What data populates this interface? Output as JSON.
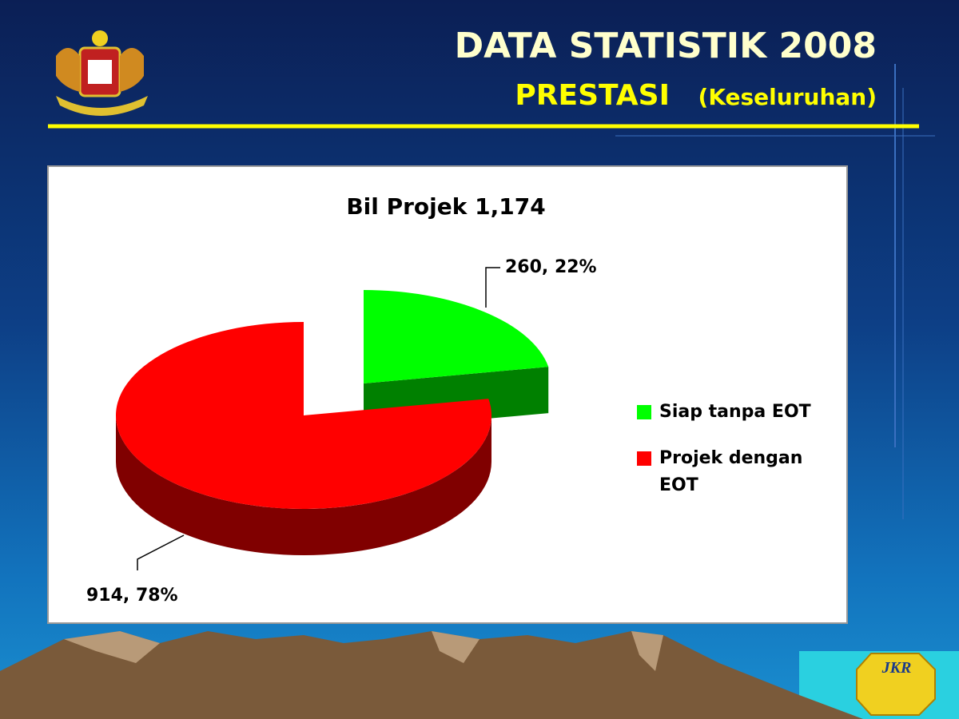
{
  "header": {
    "title": "DATA STATISTIK 2008",
    "subtitle": "PRESTASI",
    "note": "(Keseluruhan)"
  },
  "logo": "JKR",
  "chart_data": {
    "type": "pie",
    "title": "Bil Projek 1,174",
    "categories": [
      "Siap tanpa EOT",
      "Projek dengan EOT"
    ],
    "values": [
      260,
      914
    ],
    "value_labels": [
      "260, 22%",
      "914, 78%"
    ],
    "colors": [
      "#00ff00",
      "#ff0000"
    ],
    "legend": "right"
  }
}
